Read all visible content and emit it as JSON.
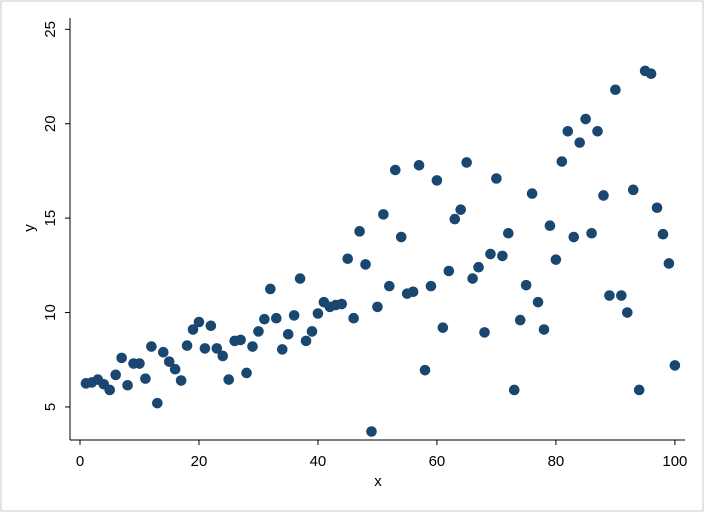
{
  "chart_data": {
    "type": "scatter",
    "x_label": "x",
    "y_label": "y",
    "color": "#1a476f",
    "xlim": [
      -1.68,
      101.7
    ],
    "ylim": [
      3.25,
      25.6
    ],
    "xticks": [
      0,
      20,
      40,
      60,
      80,
      100
    ],
    "yticks": [
      5,
      10,
      15,
      20,
      25
    ],
    "x": [
      1,
      2,
      3,
      4,
      5,
      6,
      7,
      8,
      9,
      10,
      11,
      12,
      13,
      14,
      15,
      16,
      17,
      18,
      19,
      20,
      21,
      22,
      23,
      24,
      25,
      26,
      27,
      28,
      29,
      30,
      31,
      32,
      33,
      34,
      35,
      36,
      37,
      38,
      39,
      40,
      41,
      42,
      43,
      44,
      45,
      46,
      47,
      48,
      49,
      50,
      51,
      52,
      53,
      54,
      55,
      56,
      57,
      58,
      59,
      60,
      61,
      62,
      63,
      64,
      65,
      66,
      67,
      68,
      69,
      70,
      71,
      72,
      73,
      74,
      75,
      76,
      77,
      78,
      79,
      80,
      81,
      82,
      83,
      84,
      85,
      86,
      87,
      88,
      89,
      90,
      91,
      92,
      93,
      94,
      95,
      96,
      97,
      98,
      99,
      100
    ],
    "y": [
      6.25,
      6.3,
      6.45,
      6.2,
      5.9,
      6.7,
      7.6,
      6.15,
      7.3,
      7.3,
      6.5,
      8.2,
      5.2,
      7.9,
      7.4,
      7.0,
      6.4,
      8.25,
      9.1,
      9.5,
      8.1,
      9.3,
      8.1,
      7.7,
      6.45,
      8.5,
      8.55,
      6.8,
      8.2,
      9.0,
      9.65,
      11.25,
      9.7,
      8.05,
      8.85,
      9.85,
      11.8,
      8.5,
      9.0,
      9.95,
      10.55,
      10.3,
      10.4,
      10.45,
      12.85,
      9.7,
      14.3,
      12.55,
      3.7,
      10.3,
      15.2,
      11.4,
      17.55,
      14.0,
      11.0,
      11.1,
      17.8,
      6.95,
      11.4,
      17.0,
      9.2,
      12.2,
      14.95,
      15.45,
      17.95,
      11.8,
      12.4,
      8.95,
      13.1,
      17.1,
      13.0,
      14.2,
      5.9,
      9.6,
      11.45,
      16.3,
      10.55,
      9.1,
      14.6,
      12.8,
      18.0,
      19.6,
      14.0,
      19.0,
      20.25,
      14.2,
      19.6,
      16.2,
      10.9,
      21.8,
      10.9,
      10.0,
      16.5,
      5.9,
      22.8,
      22.65,
      15.55,
      14.15,
      12.6,
      7.2
    ]
  }
}
